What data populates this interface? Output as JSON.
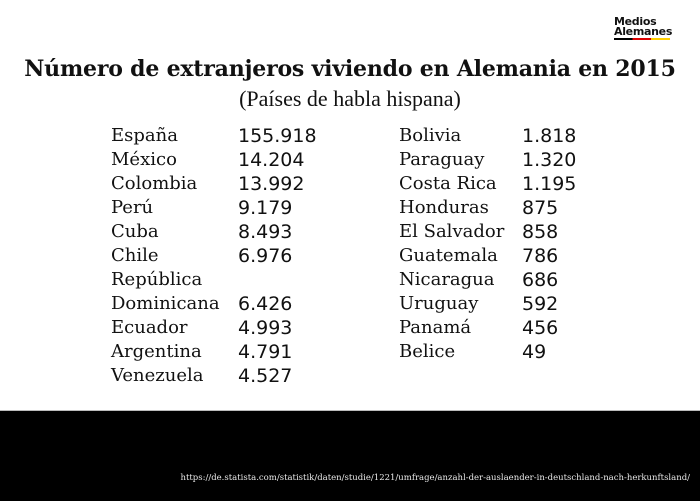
{
  "logo": {
    "line1": "Medios",
    "line2": "Alemanes",
    "bar_colors": [
      "#000000",
      "#dd0000",
      "#ffce00"
    ]
  },
  "title": "Número de extranjeros viviendo en Alemania en 2015",
  "subtitle": "(Países de habla hispana)",
  "table": {
    "left": [
      {
        "country": "España",
        "value": "155.918"
      },
      {
        "country": "México",
        "value": "14.204"
      },
      {
        "country": "Colombia",
        "value": "13.992"
      },
      {
        "country": "Perú",
        "value": "9.179"
      },
      {
        "country": "Cuba",
        "value": "8.493"
      },
      {
        "country": "Chile",
        "value": "6.976"
      },
      {
        "country": "República",
        "value": ""
      },
      {
        "country": "Dominicana",
        "value": "6.426"
      },
      {
        "country": "Ecuador",
        "value": "4.993"
      },
      {
        "country": "Argentina",
        "value": "4.791"
      },
      {
        "country": "Venezuela",
        "value": "4.527"
      }
    ],
    "right": [
      {
        "country": "Bolivia",
        "value": "1.818"
      },
      {
        "country": "Paraguay",
        "value": "1.320"
      },
      {
        "country": "Costa Rica",
        "value": "1.195"
      },
      {
        "country": "Honduras",
        "value": "875"
      },
      {
        "country": "El Salvador",
        "value": "858"
      },
      {
        "country": "Guatemala",
        "value": "786"
      },
      {
        "country": "Nicaragua",
        "value": "686"
      },
      {
        "country": "Uruguay",
        "value": "592"
      },
      {
        "country": "Panamá",
        "value": "456"
      },
      {
        "country": "Belice",
        "value": "49"
      }
    ]
  },
  "footer": {
    "source": "https://de.statista.com/statistik/daten/studie/1221/umfrage/anzahl-der-auslaender-in-deutschland-nach-herkunftsland/"
  }
}
